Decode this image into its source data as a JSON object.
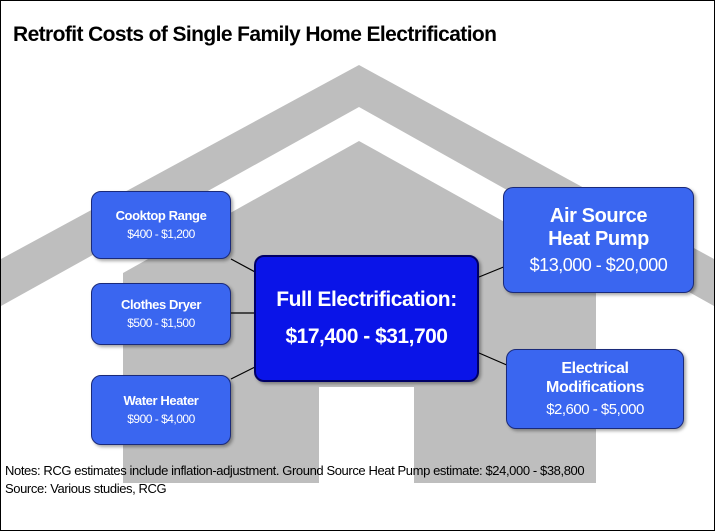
{
  "header": {
    "title": "Retrofit Costs of Single Family Home Electrification"
  },
  "center": {
    "label": "Full Electrification:",
    "range": "$17,400 - $31,700"
  },
  "boxes": [
    {
      "lines": [
        "Cooktop Range"
      ],
      "range": "$400 - $1,200"
    },
    {
      "lines": [
        "Clothes Dryer"
      ],
      "range": "$500 - $1,500"
    },
    {
      "lines": [
        "Water Heater"
      ],
      "range": "$900 - $4,000"
    },
    {
      "lines": [
        "Air Source",
        "Heat Pump"
      ],
      "range": "$13,000 - $20,000"
    },
    {
      "lines": [
        "Electrical",
        "Modifications"
      ],
      "range": "$2,600 - $5,000"
    }
  ],
  "footer": {
    "notes": "Notes: RCG estimates include inflation-adjustment. Ground Source Heat Pump estimate: $24,000 - $38,800",
    "source": "Source: Various studies, RCG"
  }
}
